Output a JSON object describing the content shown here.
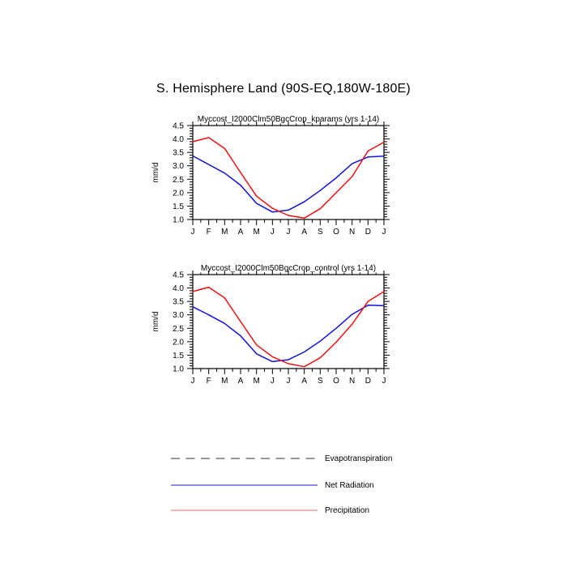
{
  "page": {
    "title": "S. Hemisphere Land (90S-EQ,180W-180E)",
    "background": "#ffffff",
    "text_color": "#000000"
  },
  "chart_data": [
    {
      "type": "line",
      "title": "Myccost_I2000Clm50BgcCrop_kparams (yrs 1-14)",
      "xlabel": "",
      "ylabel": "mm/d",
      "ylim": [
        1.0,
        4.5
      ],
      "ytick_step": 0.5,
      "y_minor_step": 0.1,
      "ytick_labels": [
        "1.0",
        "1.5",
        "2.0",
        "2.5",
        "3.0",
        "3.5",
        "4.0",
        "4.5"
      ],
      "x_categories": [
        "J",
        "F",
        "M",
        "A",
        "M",
        "J",
        "J",
        "A",
        "S",
        "O",
        "N",
        "D",
        "J"
      ],
      "grid": false,
      "series": [
        {
          "name": "Net Radiation",
          "color": "#1111dd",
          "values": [
            3.37,
            3.05,
            2.73,
            2.28,
            1.6,
            1.28,
            1.35,
            1.66,
            2.08,
            2.55,
            3.08,
            3.33,
            3.36
          ]
        },
        {
          "name": "Precipitation",
          "color": "#ee1111",
          "values": [
            3.9,
            4.05,
            3.65,
            2.75,
            1.87,
            1.42,
            1.15,
            1.05,
            1.4,
            2.0,
            2.6,
            3.55,
            3.88
          ]
        }
      ]
    },
    {
      "type": "line",
      "title": "Myccost_I2000Clm50BgcCrop_control (yrs 1-14)",
      "xlabel": "",
      "ylabel": "mm/d",
      "ylim": [
        1.0,
        4.5
      ],
      "ytick_step": 0.5,
      "y_minor_step": 0.1,
      "ytick_labels": [
        "1.0",
        "1.5",
        "2.0",
        "2.5",
        "3.0",
        "3.5",
        "4.0",
        "4.5"
      ],
      "x_categories": [
        "J",
        "F",
        "M",
        "A",
        "M",
        "J",
        "J",
        "A",
        "S",
        "O",
        "N",
        "D",
        "J"
      ],
      "grid": false,
      "series": [
        {
          "name": "Net Radiation",
          "color": "#1111dd",
          "values": [
            3.3,
            3.0,
            2.68,
            2.22,
            1.55,
            1.26,
            1.33,
            1.62,
            2.02,
            2.5,
            3.02,
            3.36,
            3.34
          ]
        },
        {
          "name": "Precipitation",
          "color": "#ee1111",
          "values": [
            3.87,
            4.03,
            3.63,
            2.75,
            1.88,
            1.44,
            1.18,
            1.07,
            1.4,
            1.98,
            2.65,
            3.5,
            3.87
          ]
        }
      ]
    }
  ],
  "legend": {
    "items": [
      {
        "label": "Evapotranspiration",
        "color": "#999999",
        "style": "dashed"
      },
      {
        "label": "Net Radiation",
        "color": "#6a6ae0",
        "style": "solid"
      },
      {
        "label": "Precipitation",
        "color": "#f59a9a",
        "style": "solid"
      }
    ]
  }
}
